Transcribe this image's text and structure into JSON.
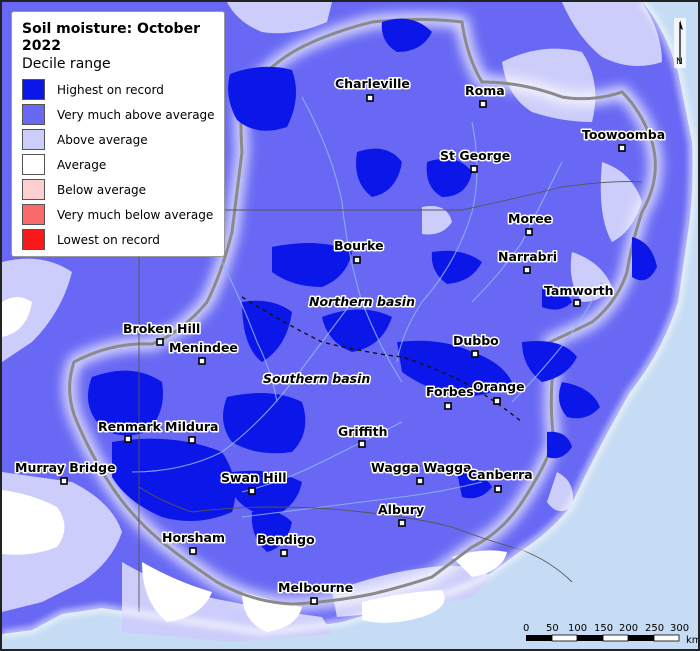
{
  "legend": {
    "title": "Soil moisture: October 2022",
    "subtitle": "Decile range",
    "items": [
      {
        "label": "Highest on record",
        "color": "#0b16e8"
      },
      {
        "label": "Very much above average",
        "color": "#6868f4"
      },
      {
        "label": "Above average",
        "color": "#cdcdfb"
      },
      {
        "label": "Average",
        "color": "#ffffff"
      },
      {
        "label": "Below average",
        "color": "#fcd0d0"
      },
      {
        "label": "Very much below average",
        "color": "#fb6a6a"
      },
      {
        "label": "Lowest on record",
        "color": "#fb1818"
      }
    ]
  },
  "colors": {
    "ocean": "#c6dcf4",
    "highest": "#0b16e8",
    "very_much_above": "#6868f4",
    "above": "#cdcdfb",
    "average": "#ffffff",
    "basin_boundary": "#8a8a8a",
    "rivers": "#8fb8ee"
  },
  "towns": [
    {
      "name": "Charleville"
    },
    {
      "name": "Roma"
    },
    {
      "name": "Toowoomba"
    },
    {
      "name": "St George"
    },
    {
      "name": "Moree"
    },
    {
      "name": "Narrabri"
    },
    {
      "name": "Bourke"
    },
    {
      "name": "Tamworth"
    },
    {
      "name": "Broken Hill"
    },
    {
      "name": "Menindee"
    },
    {
      "name": "Dubbo"
    },
    {
      "name": "Orange"
    },
    {
      "name": "Forbes"
    },
    {
      "name": "Renmark"
    },
    {
      "name": "Mildura"
    },
    {
      "name": "Griffith"
    },
    {
      "name": "Murray Bridge"
    },
    {
      "name": "Wagga Wagga"
    },
    {
      "name": "Canberra"
    },
    {
      "name": "Swan Hill"
    },
    {
      "name": "Albury"
    },
    {
      "name": "Horsham"
    },
    {
      "name": "Bendigo"
    },
    {
      "name": "Melbourne"
    }
  ],
  "regions": {
    "north": "Northern basin",
    "south": "Southern basin"
  },
  "scale_bar": {
    "ticks": [
      "0",
      "50",
      "100",
      "150",
      "200",
      "250",
      "300"
    ],
    "unit": "km"
  },
  "north_arrow": {
    "label": "N"
  }
}
